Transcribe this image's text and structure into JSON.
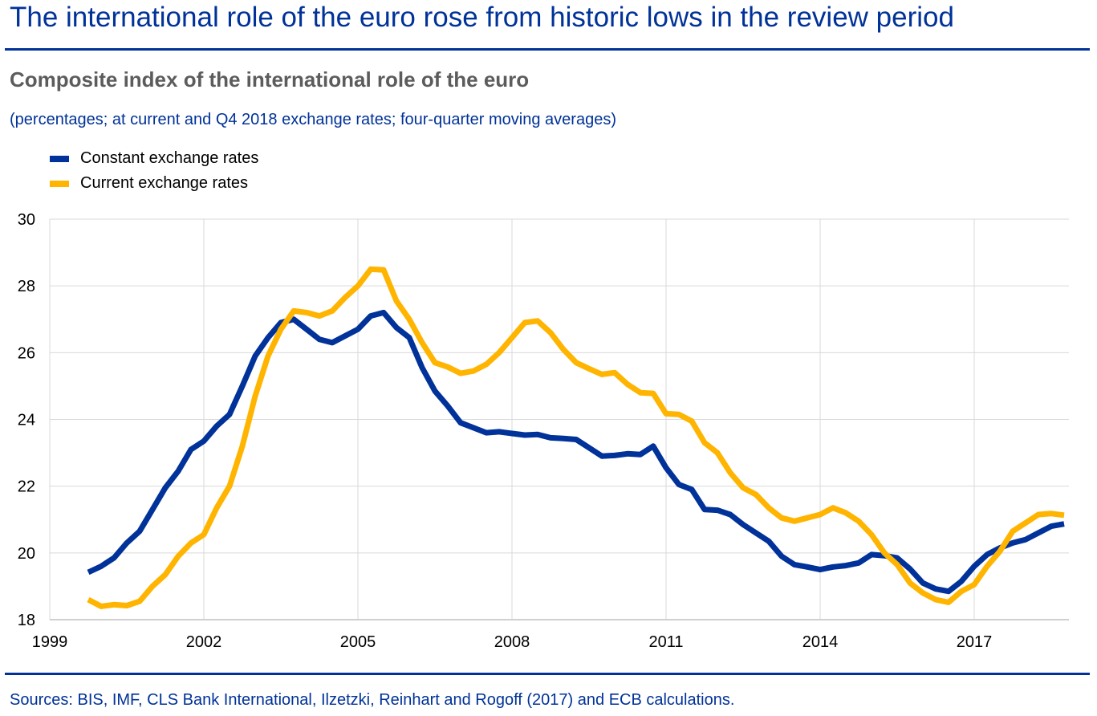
{
  "header": {
    "title": "The international role of the euro rose from historic lows in the review period"
  },
  "chart_data": {
    "type": "line",
    "title": "Composite index of the international role of the euro",
    "subtitle": "(percentages; at current and Q4 2018 exchange rates; four-quarter moving averages)",
    "xlabel": "",
    "ylabel": "",
    "xlim": [
      1999,
      2019.0
    ],
    "ylim": [
      18,
      30
    ],
    "x_ticks": [
      1999,
      2002,
      2005,
      2008,
      2011,
      2014,
      2017
    ],
    "x_tick_labels": [
      "1999",
      "2002",
      "2005",
      "2008",
      "2011",
      "2014",
      "2017"
    ],
    "y_ticks": [
      18,
      20,
      22,
      24,
      26,
      28,
      30
    ],
    "y_tick_labels": [
      "18",
      "20",
      "22",
      "24",
      "26",
      "28",
      "30"
    ],
    "grid": true,
    "legend_position": "top-left",
    "x_start": 1999.75,
    "x_step": 0.25,
    "x_description": "quarterly, Q4 1999 to Q4 2018",
    "series": [
      {
        "name": "Constant exchange rates",
        "color": "#003299",
        "values": [
          19.42,
          19.6,
          19.85,
          20.3,
          20.65,
          21.3,
          21.95,
          22.45,
          23.1,
          23.35,
          23.8,
          24.15,
          25.0,
          25.9,
          26.45,
          26.9,
          27.0,
          26.7,
          26.4,
          26.3,
          26.5,
          26.7,
          27.1,
          27.2,
          26.75,
          26.45,
          25.55,
          24.85,
          24.4,
          23.9,
          23.75,
          23.6,
          23.63,
          23.58,
          23.53,
          23.55,
          23.45,
          23.43,
          23.4,
          23.15,
          22.9,
          22.92,
          22.97,
          22.95,
          23.2,
          22.55,
          22.05,
          21.9,
          21.3,
          21.28,
          21.15,
          20.85,
          20.6,
          20.35,
          19.9,
          19.65,
          19.58,
          19.5,
          19.58,
          19.62,
          19.7,
          19.95,
          19.92,
          19.85,
          19.52,
          19.1,
          18.92,
          18.85,
          19.15,
          19.6,
          19.95,
          20.15,
          20.3,
          20.4,
          20.6,
          20.8,
          20.87
        ]
      },
      {
        "name": "Current exchange rates",
        "color": "#ffb400",
        "values": [
          18.6,
          18.4,
          18.45,
          18.42,
          18.55,
          19.0,
          19.35,
          19.9,
          20.3,
          20.55,
          21.35,
          22.0,
          23.2,
          24.7,
          25.9,
          26.7,
          27.25,
          27.2,
          27.1,
          27.25,
          27.65,
          28.0,
          28.5,
          28.48,
          27.55,
          27.0,
          26.3,
          25.7,
          25.57,
          25.38,
          25.45,
          25.65,
          26.0,
          26.45,
          26.9,
          26.95,
          26.6,
          26.1,
          25.7,
          25.52,
          25.35,
          25.4,
          25.05,
          24.8,
          24.78,
          24.17,
          24.15,
          23.95,
          23.3,
          23.0,
          22.4,
          21.95,
          21.75,
          21.35,
          21.05,
          20.95,
          21.05,
          21.15,
          21.35,
          21.2,
          20.95,
          20.55,
          20.0,
          19.65,
          19.1,
          18.8,
          18.6,
          18.52,
          18.85,
          19.05,
          19.6,
          20.05,
          20.65,
          20.9,
          21.15,
          21.18,
          21.13
        ]
      }
    ]
  },
  "footer": {
    "source": "Sources: BIS, IMF, CLS Bank International, Ilzetzki, Reinhart and Rogoff (2017) and ECB calculations."
  }
}
